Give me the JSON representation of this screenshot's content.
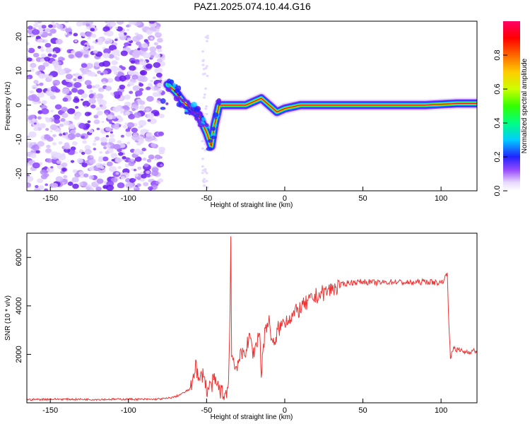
{
  "title": "PAZ1.2025.074.10.44.G16",
  "chart_data": [
    {
      "type": "heatmap",
      "xlabel": "Height of straight line (km)",
      "ylabel": "Frequency (Hz)",
      "xlim": [
        -165,
        123
      ],
      "ylim": [
        -25,
        24.5
      ],
      "xticks": [
        -150,
        -100,
        -50,
        0,
        50,
        100
      ],
      "xtick_labels": [
        "-150",
        "-100",
        "-50",
        "0",
        "50",
        "100"
      ],
      "yticks": [
        -20,
        -10,
        0,
        10,
        20
      ],
      "ytick_labels": [
        "-20",
        "-10",
        "0",
        "10",
        "20"
      ],
      "colorbar": {
        "label": "Normalized spectral amplitude",
        "range": [
          0,
          1
        ],
        "ticks": [
          0.0,
          0.2,
          0.4,
          0.6,
          0.8
        ],
        "tick_labels": [
          "0.0",
          "0.2",
          "0.4",
          "0.6",
          "0.8"
        ]
      },
      "ridge": {
        "x": [
          -75,
          -70,
          -65,
          -60,
          -55,
          -50,
          -47,
          -45,
          -42,
          -35,
          -25,
          -15,
          -10,
          -5,
          0,
          10,
          30,
          60,
          90,
          110,
          123
        ],
        "y": [
          6,
          4,
          1,
          -1,
          -3,
          -8,
          -12,
          -6,
          0,
          0,
          0,
          2,
          0,
          -2,
          -1,
          0,
          0,
          0,
          0,
          0.5,
          0.5
        ]
      }
    },
    {
      "type": "line",
      "xlabel": "Height of straight line (km)",
      "ylabel": "SNR (10 * v/v)",
      "xlim": [
        -165,
        123
      ],
      "ylim": [
        0,
        7000
      ],
      "xticks": [
        -150,
        -100,
        -50,
        0,
        50,
        100
      ],
      "xtick_labels": [
        "-150",
        "-100",
        "-50",
        "0",
        "50",
        "100"
      ],
      "yticks": [
        2000,
        4000,
        6000
      ],
      "ytick_labels": [
        "2000",
        "4000",
        "6000"
      ],
      "color": "#ee3333",
      "series": [
        {
          "x": [
            -165,
            -150,
            -120,
            -100,
            -85,
            -75,
            -70,
            -65,
            -60,
            -57,
            -55,
            -52,
            -50,
            -45,
            -40,
            -38,
            -36,
            -35,
            -34.5,
            -34,
            -32,
            -30,
            -25,
            -22,
            -20,
            -18,
            -16,
            -15,
            -14,
            -12,
            -10,
            -8,
            -6,
            -5,
            -3,
            0,
            5,
            10,
            20,
            30,
            40,
            50,
            60,
            70,
            80,
            90,
            100,
            103,
            104,
            105,
            106,
            108,
            110,
            115,
            123
          ],
          "y": [
            130,
            150,
            140,
            150,
            140,
            180,
            250,
            400,
            600,
            1700,
            800,
            1300,
            500,
            900,
            400,
            350,
            700,
            3800,
            6900,
            2200,
            1400,
            1700,
            2200,
            2700,
            2000,
            2500,
            3000,
            1000,
            2200,
            3200,
            3300,
            2600,
            2200,
            3000,
            3100,
            3400,
            3600,
            3900,
            4400,
            4700,
            4950,
            5000,
            4950,
            5000,
            4950,
            5000,
            4950,
            5200,
            5400,
            3300,
            1800,
            2300,
            2200,
            2100,
            2150
          ]
        }
      ]
    }
  ]
}
